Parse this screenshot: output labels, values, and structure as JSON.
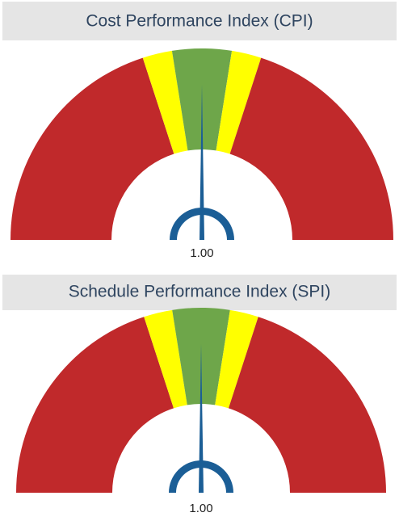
{
  "chart_data": [
    {
      "type": "gauge",
      "title": "Cost Performance Index (CPI)",
      "values": [
        1
      ],
      "value_labels": [
        "1.00"
      ],
      "ylim": [
        0,
        2
      ],
      "needle_color": "#1b5e96",
      "bands": [
        {
          "from": 0,
          "to": 0.8,
          "color": "#c0292b"
        },
        {
          "from": 0.8,
          "to": 0.9,
          "color": "#ffff00"
        },
        {
          "from": 0.9,
          "to": 1.1,
          "color": "#6ea64a"
        },
        {
          "from": 1.1,
          "to": 1.2,
          "color": "#ffff00"
        },
        {
          "from": 1.2,
          "to": 2,
          "color": "#c0292b"
        }
      ]
    },
    {
      "type": "gauge",
      "title": "Schedule Performance Index (SPI)",
      "values": [
        1
      ],
      "value_labels": [
        "1.00"
      ],
      "ylim": [
        0,
        2
      ],
      "needle_color": "#1b5e96",
      "bands": [
        {
          "from": 0,
          "to": 0.8,
          "color": "#c0292b"
        },
        {
          "from": 0.8,
          "to": 0.9,
          "color": "#ffff00"
        },
        {
          "from": 0.9,
          "to": 1.1,
          "color": "#6ea64a"
        },
        {
          "from": 1.1,
          "to": 1.2,
          "color": "#ffff00"
        },
        {
          "from": 1.2,
          "to": 2,
          "color": "#c0292b"
        }
      ]
    }
  ]
}
